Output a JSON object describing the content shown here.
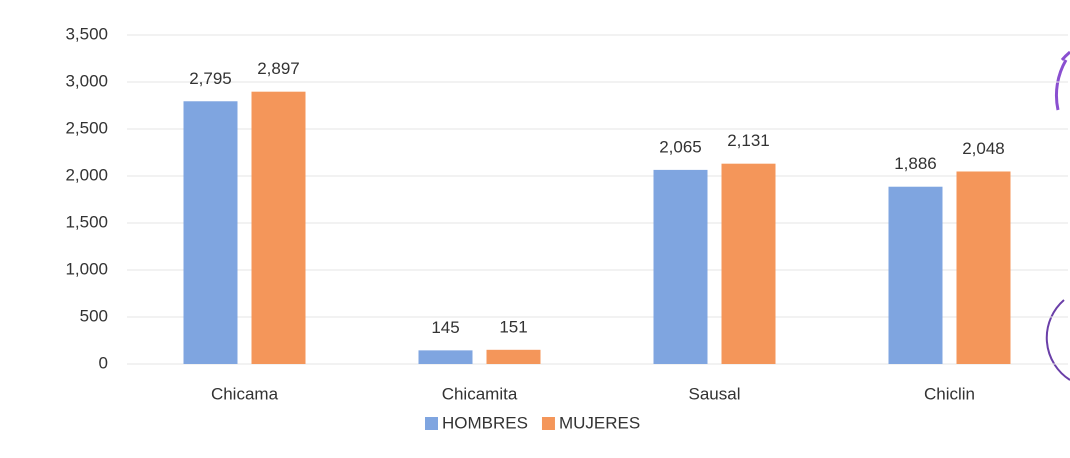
{
  "chart_data": {
    "type": "bar",
    "categories": [
      "Chicama",
      "Chicamita",
      "Sausal",
      "Chiclin"
    ],
    "series": [
      {
        "name": "HOMBRES",
        "color": "#7fa5e0",
        "values": [
          2795,
          145,
          2065,
          1886
        ],
        "value_labels": [
          "2,795",
          "145",
          "2,065",
          "1,886"
        ]
      },
      {
        "name": "MUJERES",
        "color": "#f4965a",
        "values": [
          2897,
          151,
          2131,
          2048
        ],
        "value_labels": [
          "2,897",
          "151",
          "2,131",
          "2,048"
        ]
      }
    ],
    "ylim": [
      0,
      3500
    ],
    "yticks": [
      0,
      500,
      {
        "value": 1000,
        "label": "1,000"
      },
      {
        "value": 1500,
        "label": "1,500"
      },
      {
        "value": 2000,
        "label": "2,000"
      },
      {
        "value": 2500,
        "label": "2,500"
      },
      {
        "value": 3000,
        "label": "3,000"
      },
      {
        "value": 3500,
        "label": "3,500"
      }
    ],
    "grid": true,
    "legend": "bottom"
  }
}
